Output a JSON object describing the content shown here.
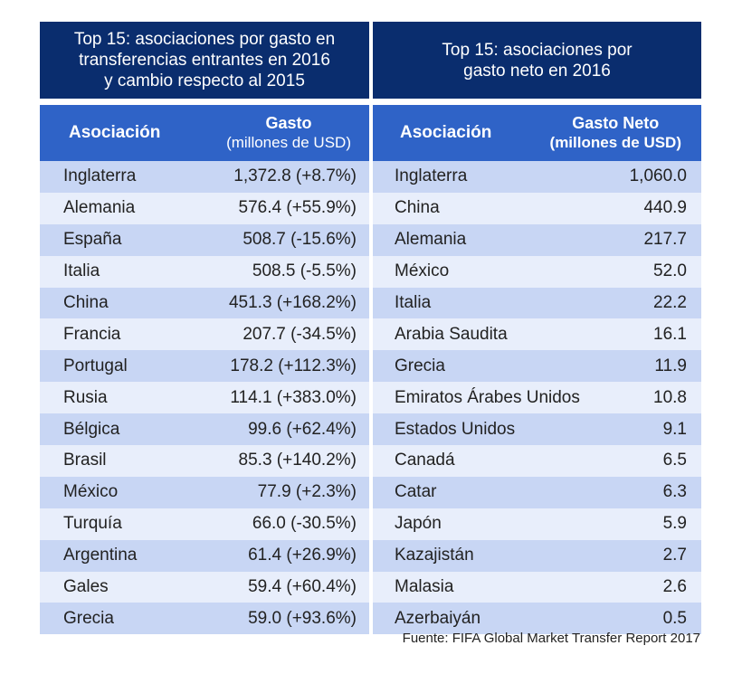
{
  "chart_data": [
    {
      "type": "table",
      "title_lines": [
        "Top 15: asociaciones por gasto en",
        "transferencias entrantes en 2016",
        "y cambio respecto al 2015"
      ],
      "columns": {
        "name": "Asociación",
        "value_main": "Gasto",
        "value_sub": "(millones de USD)"
      },
      "rows": [
        {
          "name": "Inglaterra",
          "value": "1,372.8 (+8.7%)"
        },
        {
          "name": "Alemania",
          "value": "576.4 (+55.9%)"
        },
        {
          "name": "España",
          "value": "508.7 (-15.6%)"
        },
        {
          "name": "Italia",
          "value": "508.5 (-5.5%)"
        },
        {
          "name": "China",
          "value": "451.3 (+168.2%)"
        },
        {
          "name": "Francia",
          "value": "207.7 (-34.5%)"
        },
        {
          "name": "Portugal",
          "value": "178.2 (+112.3%)"
        },
        {
          "name": "Rusia",
          "value": "114.1 (+383.0%)"
        },
        {
          "name": "Bélgica",
          "value": "99.6 (+62.4%)"
        },
        {
          "name": "Brasil",
          "value": "85.3 (+140.2%)"
        },
        {
          "name": "México",
          "value": "77.9 (+2.3%)"
        },
        {
          "name": "Turquía",
          "value": "66.0 (-30.5%)"
        },
        {
          "name": "Argentina",
          "value": "61.4 (+26.9%)"
        },
        {
          "name": "Gales",
          "value": "59.4 (+60.4%)"
        },
        {
          "name": "Grecia",
          "value": "59.0 (+93.6%)"
        }
      ]
    },
    {
      "type": "table",
      "title_lines": [
        "Top 15: asociaciones por",
        "gasto neto en 2016"
      ],
      "columns": {
        "name": "Asociación",
        "value_main": "Gasto Neto",
        "value_sub": "(millones de USD)"
      },
      "rows": [
        {
          "name": "Inglaterra",
          "value": "1,060.0"
        },
        {
          "name": "China",
          "value": "440.9"
        },
        {
          "name": "Alemania",
          "value": "217.7"
        },
        {
          "name": "México",
          "value": "52.0"
        },
        {
          "name": "Italia",
          "value": "22.2"
        },
        {
          "name": "Arabia Saudita",
          "value": "16.1"
        },
        {
          "name": "Grecia",
          "value": "11.9"
        },
        {
          "name": "Emiratos Árabes Unidos",
          "value": "10.8"
        },
        {
          "name": "Estados Unidos",
          "value": "9.1"
        },
        {
          "name": "Canadá",
          "value": "6.5"
        },
        {
          "name": "Catar",
          "value": "6.3"
        },
        {
          "name": "Japón",
          "value": "5.9"
        },
        {
          "name": "Kazajistán",
          "value": "2.7"
        },
        {
          "name": "Malasia",
          "value": "2.6"
        },
        {
          "name": "Azerbaiyán",
          "value": "0.5"
        }
      ]
    }
  ],
  "source": "Fuente: FIFA Global Market Transfer Report 2017",
  "colors": {
    "title_bg": "#0a2d6e",
    "header_bg": "#2f63c7",
    "row_dark": "#c8d6f4",
    "row_light": "#e8eefb"
  }
}
